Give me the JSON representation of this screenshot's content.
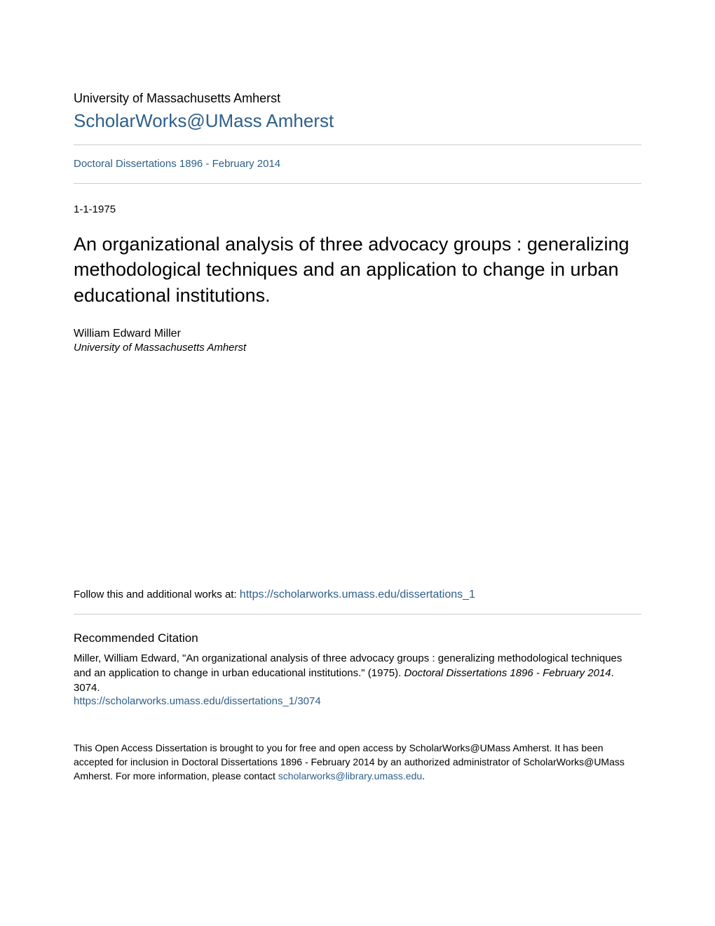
{
  "header": {
    "university": "University of Massachusetts Amherst",
    "repository": "ScholarWorks@UMass Amherst"
  },
  "collection": {
    "name": "Doctoral Dissertations 1896 - February 2014"
  },
  "date": "1-1-1975",
  "title": "An organizational analysis of three advocacy groups : generalizing methodological techniques and an application to change in urban educational institutions.",
  "author": {
    "name": "William Edward Miller",
    "affiliation": "University of Massachusetts Amherst"
  },
  "follow": {
    "prefix": "Follow this and additional works at: ",
    "url": "https://scholarworks.umass.edu/dissertations_1"
  },
  "citation": {
    "heading": "Recommended Citation",
    "text_part1": "Miller, William Edward, \"An organizational analysis of three advocacy groups : generalizing methodological techniques and an application to change in urban educational institutions.\" (1975). ",
    "text_italic": "Doctoral Dissertations 1896 - February 2014",
    "text_part2": ". 3074.",
    "url": "https://scholarworks.umass.edu/dissertations_1/3074"
  },
  "footer": {
    "text_part1": "This Open Access Dissertation is brought to you for free and open access by ScholarWorks@UMass Amherst. It has been accepted for inclusion in Doctoral Dissertations 1896 - February 2014 by an authorized administrator of ScholarWorks@UMass Amherst. For more information, please contact ",
    "email": "scholarworks@library.umass.edu",
    "text_part2": "."
  },
  "colors": {
    "link": "#2e5f8a",
    "text": "#000000",
    "border": "#cccccc",
    "background": "#ffffff"
  },
  "typography": {
    "university_fontsize": 18,
    "repository_fontsize": 26,
    "collection_fontsize": 15,
    "date_fontsize": 15,
    "title_fontsize": 27,
    "author_name_fontsize": 16,
    "author_affiliation_fontsize": 15,
    "follow_fontsize": 15,
    "citation_heading_fontsize": 17,
    "citation_body_fontsize": 15,
    "footer_fontsize": 14
  }
}
